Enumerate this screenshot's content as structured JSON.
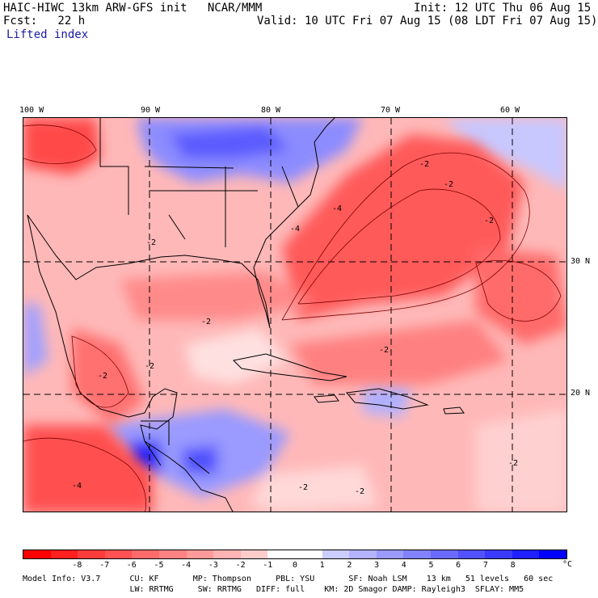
{
  "header": {
    "title_left": "HAIC-HIWC 13km ARW-GFS init   NCAR/MMM",
    "init": "Init: 12 UTC Thu 06 Aug 15",
    "fcst": "Fcst:   22 h",
    "valid": "Valid: 10 UTC Fri 07 Aug 15 (08 LDT Fri 07 Aug 15)",
    "field_name": "Lifted index"
  },
  "axes": {
    "lon_labels": [
      "100 W",
      "90 W",
      "80 W",
      "70 W",
      "60 W"
    ],
    "lat_labels": [
      "30 N",
      "20 N"
    ]
  },
  "colorbar": {
    "unit": "°C",
    "ticks": [
      "-8",
      "-7",
      "-6",
      "-5",
      "-4",
      "-3",
      "-2",
      "-1",
      "0",
      "1",
      "2",
      "3",
      "4",
      "5",
      "6",
      "7",
      "8"
    ],
    "colors": [
      "#ff0000",
      "#ff2020",
      "#ff3b3b",
      "#ff5252",
      "#ff6a6a",
      "#ff8282",
      "#ff9a9a",
      "#ffb3b3",
      "#ffcccc",
      "#ffffff",
      "#ffffff",
      "#ccccff",
      "#b3b3ff",
      "#9a9aff",
      "#8282ff",
      "#6a6aff",
      "#5252ff",
      "#3b3bff",
      "#2020ff",
      "#0000ff"
    ]
  },
  "model_info": {
    "line1": "Model Info: V3.7      CU: KF       MP: Thompson     PBL: YSU       SF: Noah LSM    13 km   51 levels   60 sec",
    "line2": "                      LW: RRTMG     SW: RRTMG   DIFF: full    KM: 2D Smagor DAMP: Rayleigh3  SFLAY: MM5"
  },
  "contour_labels": [
    "-2",
    "-2",
    "-2",
    "-2",
    "-4",
    "-4",
    "-2",
    "-2",
    "-4",
    "-2",
    "-2",
    "-2",
    "-2",
    "-2"
  ]
}
